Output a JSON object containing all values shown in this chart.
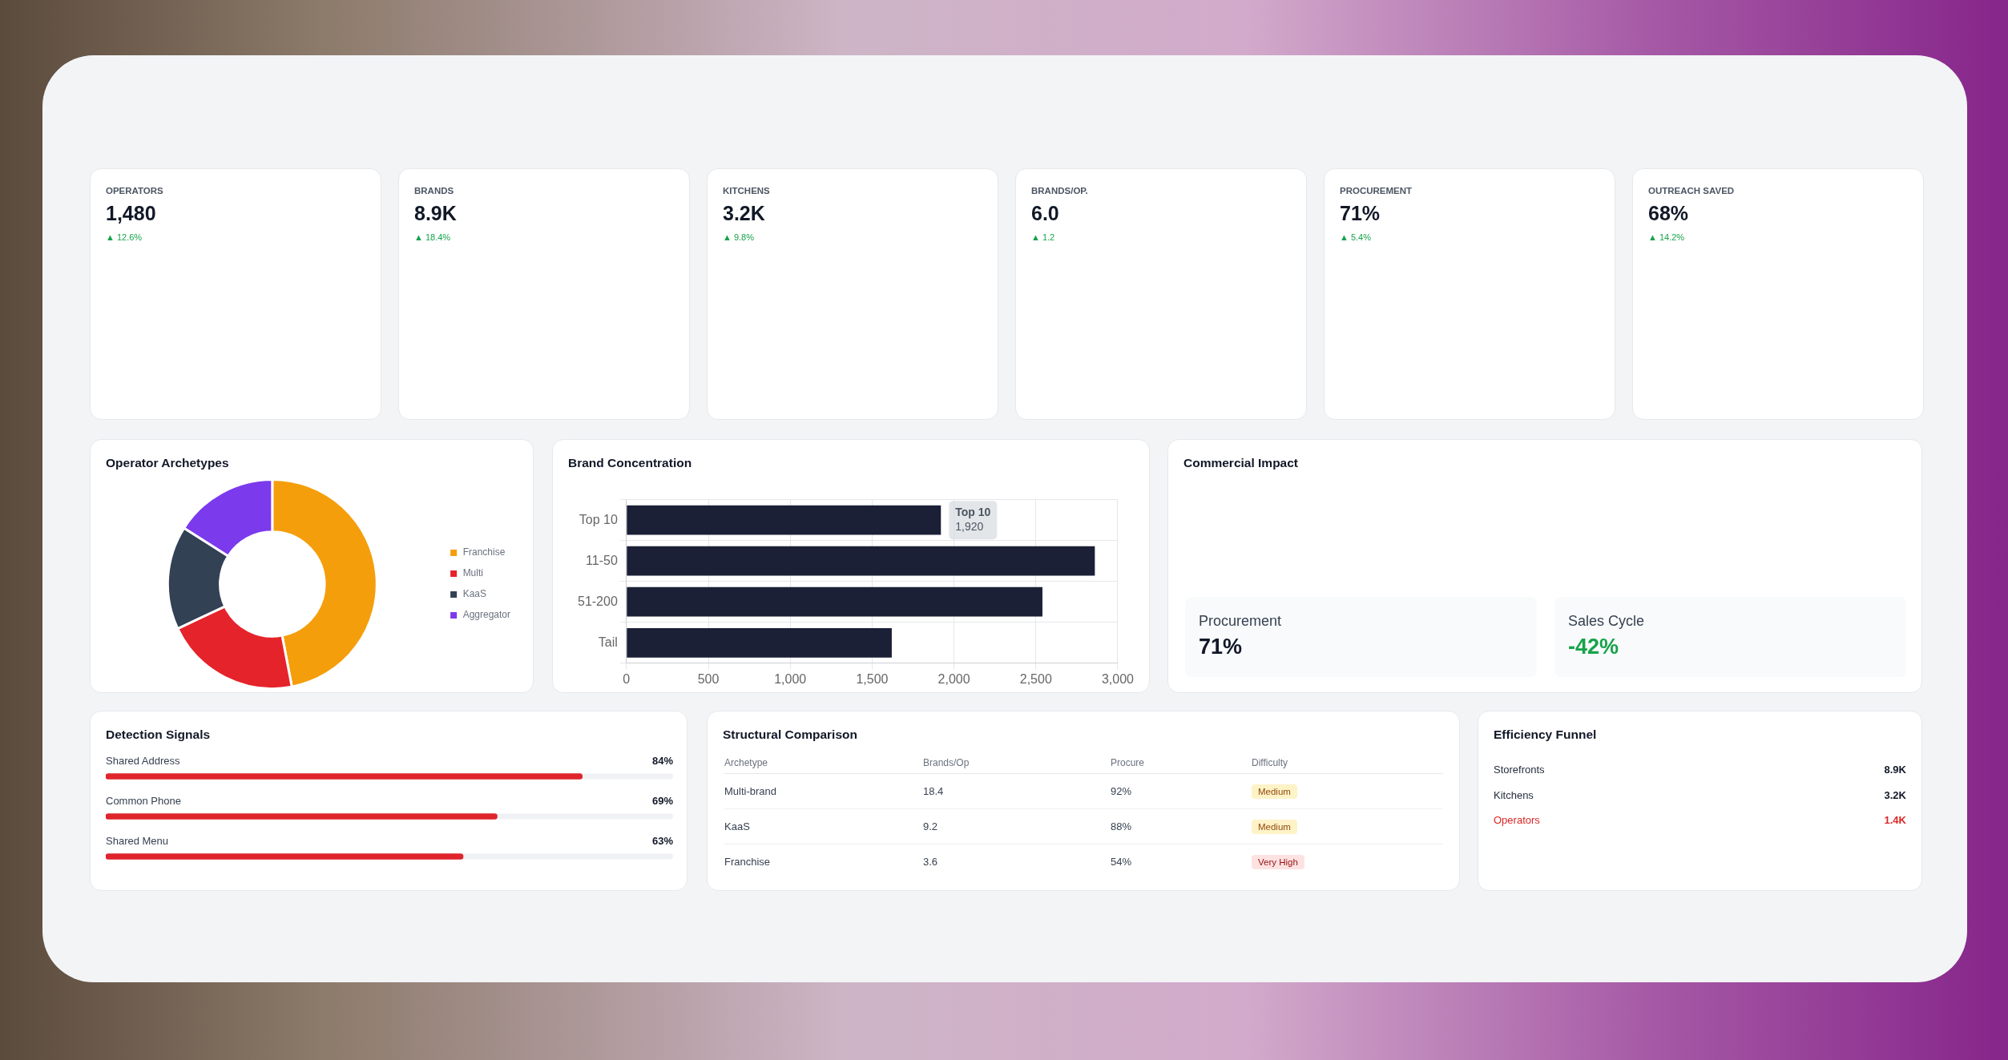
{
  "chart_data": [
    {
      "type": "other",
      "title": "OPERATORS",
      "annotations": [
        "1,480",
        "▲ 12.6%"
      ],
      "colors": [
        "#111827",
        "#16a34a"
      ]
    },
    {
      "type": "other",
      "title": "BRANDS",
      "annotations": [
        "8.9K",
        "▲ 18.4%"
      ],
      "colors": [
        "#111827",
        "#16a34a"
      ]
    },
    {
      "type": "other",
      "title": "KITCHENS",
      "annotations": [
        "3.2K",
        "▲ 9.8%"
      ],
      "colors": [
        "#111827",
        "#16a34a"
      ]
    },
    {
      "type": "other",
      "title": "BRANDS/OP.",
      "annotations": [
        "6.0",
        "▲ 1.2"
      ],
      "colors": [
        "#111827",
        "#16a34a"
      ]
    },
    {
      "type": "other",
      "title": "PROCUREMENT",
      "annotations": [
        "71%",
        "▲ 5.4%"
      ],
      "colors": [
        "#111827",
        "#16a34a"
      ]
    },
    {
      "type": "other",
      "title": "OUTREACH SAVED",
      "annotations": [
        "68%",
        "▲ 14.2%"
      ],
      "colors": [
        "#111827",
        "#16a34a"
      ]
    },
    {
      "type": "donut",
      "title": "Operator Archetypes",
      "categories": [
        "Franchise",
        "Multi",
        "KaaS",
        "Aggregator"
      ],
      "values": [
        47,
        21,
        16,
        16
      ],
      "colors": [
        "#f59e0b",
        "#e5232a",
        "#334155",
        "#7c3aed"
      ],
      "legend": "right"
    },
    {
      "type": "bar",
      "title": "Brand Concentration",
      "orientation": "horizontal",
      "categories": [
        "Top 10",
        "11-50",
        "51-200",
        "Tail"
      ],
      "values": [
        1920,
        2860,
        2540,
        1620
      ],
      "color": "#1b2036",
      "xlim": [
        0,
        3000
      ],
      "xticks": [
        0,
        500,
        {
          "value": 1000,
          "label": "1,000"
        },
        {
          "value": 1500,
          "label": "1,500"
        },
        {
          "value": 2000,
          "label": "2,000"
        },
        {
          "value": 2500,
          "label": "2,500"
        },
        {
          "value": 3000,
          "label": "3,000"
        }
      ],
      "grid": true,
      "annotations": [
        {
          "text": "Top 10",
          "x": 1920,
          "y": "Top 10"
        },
        {
          "text": "1,920",
          "x": 1920,
          "y": "Top 10"
        }
      ]
    },
    {
      "type": "other",
      "title": "Commercial Impact",
      "categories": [
        "Procurement",
        "Sales Cycle"
      ],
      "value_labels": [
        "71%",
        "-42%"
      ]
    },
    {
      "type": "bar",
      "title": "Detection Signals",
      "orientation": "horizontal",
      "categories": [
        "Shared Address",
        "Common Phone",
        "Shared Menu"
      ],
      "values": [
        84,
        69,
        63
      ],
      "value_labels": [
        "84%",
        "69%",
        "63%"
      ],
      "color": "#e0242b",
      "xlim": [
        0,
        100
      ]
    },
    {
      "type": "other",
      "title": "Structural Comparison",
      "ylabel": "Archetype",
      "categories": [
        "Brands/Op",
        "Procure",
        "Difficulty"
      ],
      "y_categories": [
        "Multi-brand",
        "KaaS",
        "Franchise"
      ],
      "cell_labels": [
        [
          "18.4",
          "92%",
          "Medium"
        ],
        [
          "9.2",
          "88%",
          "Medium"
        ],
        [
          "3.6",
          "54%",
          "Very High"
        ]
      ],
      "colors": [
        [
          null,
          null,
          "#fef3c7"
        ],
        [
          null,
          null,
          "#fef3c7"
        ],
        [
          null,
          null,
          "#fee2e2"
        ]
      ]
    },
    {
      "type": "other",
      "title": "Efficiency Funnel",
      "categories": [
        "Storefronts",
        "Kitchens",
        "Operators"
      ],
      "value_labels": [
        "8.9K",
        "3.2K",
        "1.4K"
      ]
    }
  ]
}
